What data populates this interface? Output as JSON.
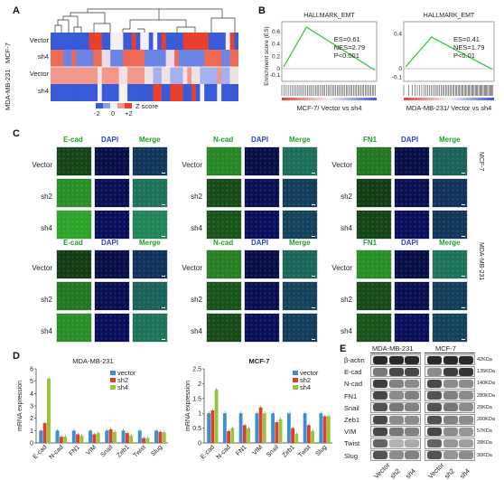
{
  "panels": {
    "a": "A",
    "b": "B",
    "c": "C",
    "d": "D",
    "e": "E"
  },
  "heatmap": {
    "rows": [
      "Vector",
      "sh4",
      "Vector",
      "sh4"
    ],
    "groups": [
      "MCF-7",
      "MDA-MB-231"
    ],
    "legend_ticks": [
      "-2",
      "0",
      "+2"
    ],
    "legend_title": "Z score",
    "colors": {
      "low": "#3a5bd9",
      "mid": "#f4f0f6",
      "high": "#e8402d"
    }
  },
  "gsea": [
    {
      "title": "HALLMARK_EMT",
      "es": "ES=0.61",
      "nes": "NES=2.79",
      "p": "P<0.001",
      "caption": "MCF-7/ Vector vs sh4",
      "yticks": [
        "0.6",
        "0.4",
        "0.2",
        "0",
        "-0.1"
      ],
      "ylabel": "Enrichment score (ES)"
    },
    {
      "title": "HALLMARK_EMT",
      "es": "ES=0.41",
      "nes": "NES=1.79",
      "p": "P<0.01",
      "caption": "MDA-MB-231/ Vector vs sh4",
      "yticks": [
        "0.4",
        "0",
        "-0.1"
      ],
      "ylabel": ""
    }
  ],
  "if": {
    "rows": [
      "Vector",
      "sh2",
      "sh4"
    ],
    "top": [
      {
        "markers": [
          "E-cad",
          "DAPI",
          "Merge"
        ]
      },
      {
        "markers": [
          "N-cad",
          "DAPI",
          "Merge"
        ]
      },
      {
        "markers": [
          "FN1",
          "DAPI",
          "Merge"
        ]
      }
    ],
    "bottom": [
      {
        "markers": [
          "E-cad",
          "DAPI",
          "Merge"
        ]
      },
      {
        "markers": [
          "N-cad",
          "DAPI",
          "Merge"
        ]
      },
      {
        "markers": [
          "FN1",
          "DAPI",
          "Merge"
        ]
      }
    ],
    "side_labels": [
      "MCF-7",
      "MDA-MB-231"
    ]
  },
  "chart_data": [
    {
      "type": "bar",
      "title": "MDA-MB-231",
      "ylabel": "mRNA expression",
      "ylim": [
        0,
        6
      ],
      "yticks": [
        "0",
        "1",
        "2",
        "3",
        "4",
        "5",
        "6"
      ],
      "categories": [
        "E-cad",
        "N-cad",
        "FN1",
        "VIM",
        "Snail",
        "Zeb1",
        "Twist",
        "Slug"
      ],
      "series": [
        {
          "name": "vector",
          "color": "#3b8fd6",
          "values": [
            1.0,
            1.0,
            1.0,
            1.0,
            1.0,
            1.0,
            1.0,
            1.0
          ]
        },
        {
          "name": "sh2",
          "color": "#d9412b",
          "values": [
            1.6,
            0.5,
            0.7,
            0.7,
            1.1,
            0.8,
            0.4,
            0.9
          ]
        },
        {
          "name": "sh4",
          "color": "#9bc23c",
          "values": [
            5.2,
            0.5,
            0.6,
            0.8,
            0.9,
            0.6,
            0.4,
            0.85
          ]
        }
      ]
    },
    {
      "type": "bar",
      "title": "MCF-7",
      "ylabel": "mRNA expression",
      "ylim": [
        0,
        2.5
      ],
      "yticks": [
        "0",
        "0.5",
        "1",
        "1.5",
        "2",
        "2.5"
      ],
      "categories": [
        "E-cad",
        "N-cad",
        "FN1",
        "VIM",
        "Snail",
        "Zeb1",
        "Twist",
        "Slug"
      ],
      "series": [
        {
          "name": "vector",
          "color": "#3b8fd6",
          "values": [
            1.0,
            1.0,
            1.0,
            1.0,
            1.0,
            1.0,
            1.0,
            1.0
          ]
        },
        {
          "name": "sh2",
          "color": "#d9412b",
          "values": [
            1.1,
            0.4,
            0.6,
            1.2,
            0.7,
            0.5,
            0.6,
            0.9
          ]
        },
        {
          "name": "sh4",
          "color": "#9bc23c",
          "values": [
            1.8,
            0.5,
            0.5,
            1.0,
            0.8,
            0.3,
            0.4,
            0.9
          ]
        }
      ]
    }
  ],
  "western": {
    "groups": [
      "MDA-MB-231",
      "MCF-7"
    ],
    "proteins": [
      "β-actin",
      "E-cad",
      "N-cad",
      "FN1",
      "Snail",
      "Zeb1",
      "VIM",
      "Twist",
      "Slug"
    ],
    "sizes": [
      "42KDa",
      "135KDa",
      "140KDa",
      "280KDa",
      "29KDa",
      "200KDa",
      "57KDa",
      "28KDa",
      "30KDa"
    ],
    "lanes": [
      "Vector",
      "sh2",
      "sh4",
      "Vector",
      "sh2",
      "sh4"
    ]
  }
}
